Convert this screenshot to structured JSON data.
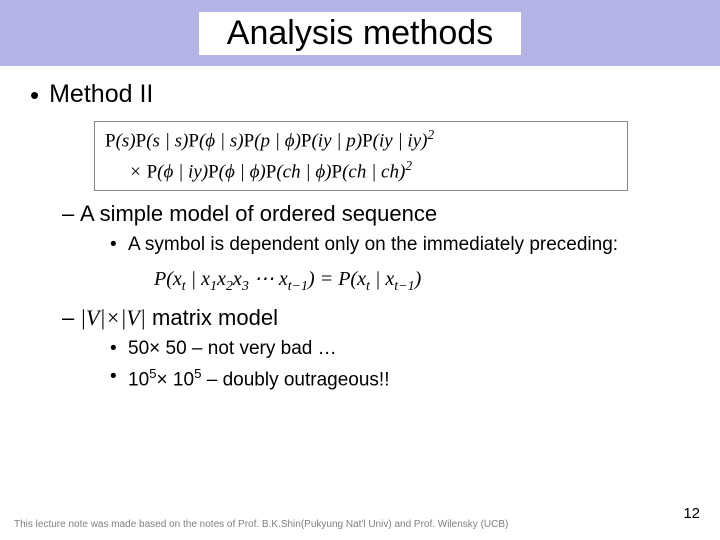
{
  "colors": {
    "title_band_bg": "#b3b3e6",
    "title_box_bg": "#ffffff",
    "text": "#000000",
    "formula_border": "#888888",
    "footer_text": "#808080",
    "page_bg": "#ffffff"
  },
  "title": "Analysis methods",
  "bullets": {
    "lvl1_item": "Method II",
    "lvl2_item1": "A simple model of ordered sequence",
    "lvl3_item1": "A symbol is dependent only on the immediately preceding:",
    "lvl2_item2_prefix": "|V|×|V|",
    "lvl2_item2_rest": " matrix model",
    "lvl3_item2a_prefix": "50× 50 ",
    "lvl3_item2a_rest": "– not very bad …",
    "lvl3_item2b_prefix_a": "10",
    "lvl3_item2b_sup": "5",
    "lvl3_item2b_mid": "× 10",
    "lvl3_item2b_rest": " – doubly outrageous!!"
  },
  "formula_main": {
    "line1": "P(s)P(s | s)P(ϕ | s)P(p | ϕ)P(iy | p)P(iy | iy)²",
    "line2": "× P(ϕ | iy)P(ϕ | ϕ)P(ch | ϕ)P(ch | ch)²"
  },
  "formula_small": "P(xₜ | x₁x₂x₃ … xₜ₋₁) = P(xₜ | xₜ₋₁)",
  "footer": "This lecture note was made based on the notes of Prof. B.K.Shin(Pukyung Nat'l Univ) and Prof. Wilensky (UCB)",
  "page_number": "12"
}
